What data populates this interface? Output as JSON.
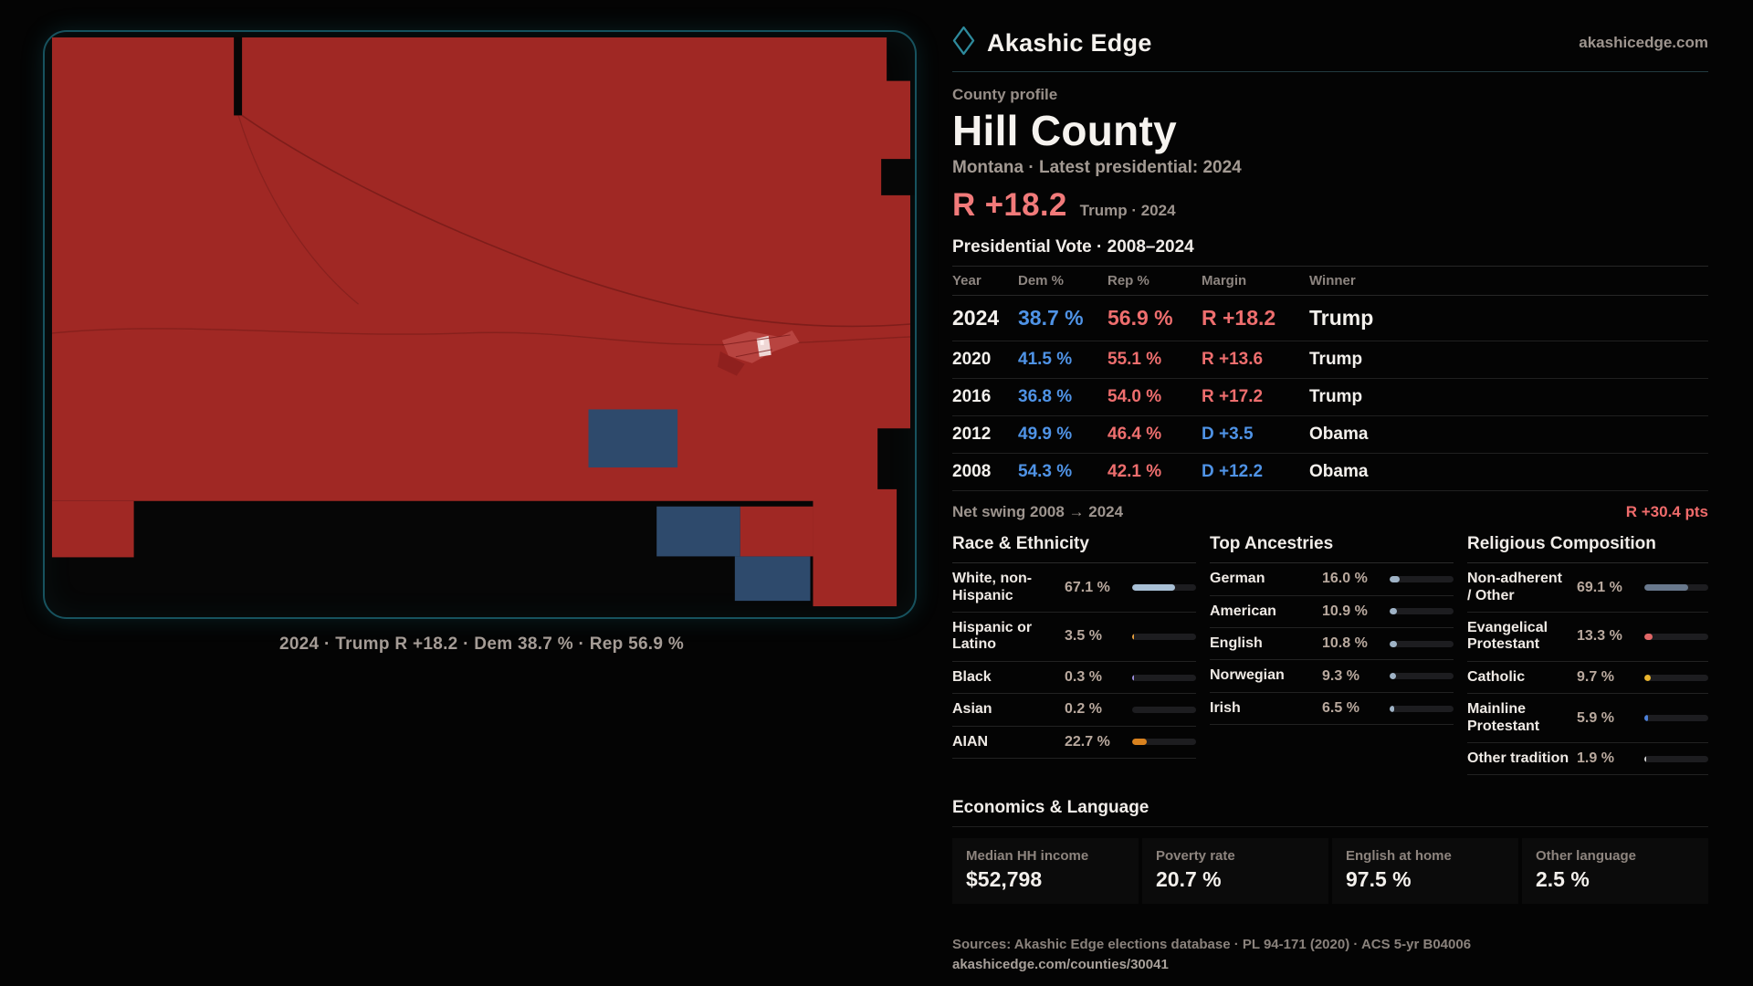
{
  "brand": {
    "name": "Akashic Edge",
    "site": "akashicedge.com"
  },
  "profile": {
    "kicker": "County profile",
    "county": "Hill County",
    "meta": "Montana · Latest presidential: 2024",
    "lead_margin": "R +18.2",
    "lead_context": "Trump · 2024"
  },
  "map": {
    "caption": "2024 · Trump R +18.2 · Dem 38.7 % · Rep 56.9 %"
  },
  "vote_table": {
    "title": "Presidential Vote · 2008–2024",
    "columns": {
      "year": "Year",
      "dem": "Dem %",
      "rep": "Rep %",
      "margin": "Margin",
      "winner": "Winner"
    },
    "rows": [
      {
        "year": "2024",
        "dem": "38.7 %",
        "rep": "56.9 %",
        "margin": "R +18.2",
        "winner": "Trump"
      },
      {
        "year": "2020",
        "dem": "41.5 %",
        "rep": "55.1 %",
        "margin": "R +13.6",
        "winner": "Trump"
      },
      {
        "year": "2016",
        "dem": "36.8 %",
        "rep": "54.0 %",
        "margin": "R +17.2",
        "winner": "Trump"
      },
      {
        "year": "2012",
        "dem": "49.9 %",
        "rep": "46.4 %",
        "margin": "D +3.5",
        "winner": "Obama"
      },
      {
        "year": "2008",
        "dem": "54.3 %",
        "rep": "42.1 %",
        "margin": "D +12.2",
        "winner": "Obama"
      }
    ],
    "net_swing": {
      "label": "Net swing 2008 → 2024",
      "value": "R +30.4 pts"
    }
  },
  "race": {
    "heading": "Race & Ethnicity",
    "rows": [
      {
        "label": "White, non-Hispanic",
        "value": "67.1 %",
        "pct": 67.1,
        "color": "#a9c0d6"
      },
      {
        "label": "Hispanic or Latino",
        "value": "3.5 %",
        "pct": 3.5,
        "color": "#e59f3e"
      },
      {
        "label": "Black",
        "value": "0.3 %",
        "pct": 0.3,
        "color": "#9b8cdc"
      },
      {
        "label": "Asian",
        "value": "0.2 %",
        "pct": 0.2,
        "color": "#b0b0b0"
      },
      {
        "label": "AIAN",
        "value": "22.7 %",
        "pct": 22.7,
        "color": "#d9821f"
      }
    ]
  },
  "ancestries": {
    "heading": "Top Ancestries",
    "rows": [
      {
        "label": "German",
        "value": "16.0 %",
        "pct": 16.0,
        "color": "#9fb3c6"
      },
      {
        "label": "American",
        "value": "10.9 %",
        "pct": 10.9,
        "color": "#9fb3c6"
      },
      {
        "label": "English",
        "value": "10.8 %",
        "pct": 10.8,
        "color": "#9fb3c6"
      },
      {
        "label": "Norwegian",
        "value": "9.3 %",
        "pct": 9.3,
        "color": "#9fb3c6"
      },
      {
        "label": "Irish",
        "value": "6.5 %",
        "pct": 6.5,
        "color": "#9fb3c6"
      }
    ]
  },
  "religion": {
    "heading": "Religious Composition",
    "rows": [
      {
        "label": "Non-adherent / Other",
        "value": "69.1 %",
        "pct": 69.1,
        "color": "#68788c"
      },
      {
        "label": "Evangelical Protestant",
        "value": "13.3 %",
        "pct": 13.3,
        "color": "#e16666"
      },
      {
        "label": "Catholic",
        "value": "9.7 %",
        "pct": 9.7,
        "color": "#e9b42d"
      },
      {
        "label": "Mainline Protestant",
        "value": "5.9 %",
        "pct": 5.9,
        "color": "#4c80d8"
      },
      {
        "label": "Other tradition",
        "value": "1.9 %",
        "pct": 1.9,
        "color": "#cfcfcf"
      }
    ]
  },
  "economics": {
    "heading": "Economics & Language",
    "stats": [
      {
        "label": "Median HH income",
        "value": "$52,798"
      },
      {
        "label": "Poverty rate",
        "value": "20.7 %"
      },
      {
        "label": "English at home",
        "value": "97.5 %"
      },
      {
        "label": "Other language",
        "value": "2.5 %"
      }
    ]
  },
  "footer": {
    "sources": "Sources: Akashic Edge elections database · PL 94-171 (2020) · ACS 5-yr B04006",
    "permalink": "akashicedge.com/counties/30041"
  },
  "colors": {
    "dem_blue": "#4f93e6",
    "rep_red": "#ee6e6e",
    "accent_teal": "#2e8a9c",
    "map_red": "#a02824",
    "map_blue": "#2e4a6c"
  }
}
